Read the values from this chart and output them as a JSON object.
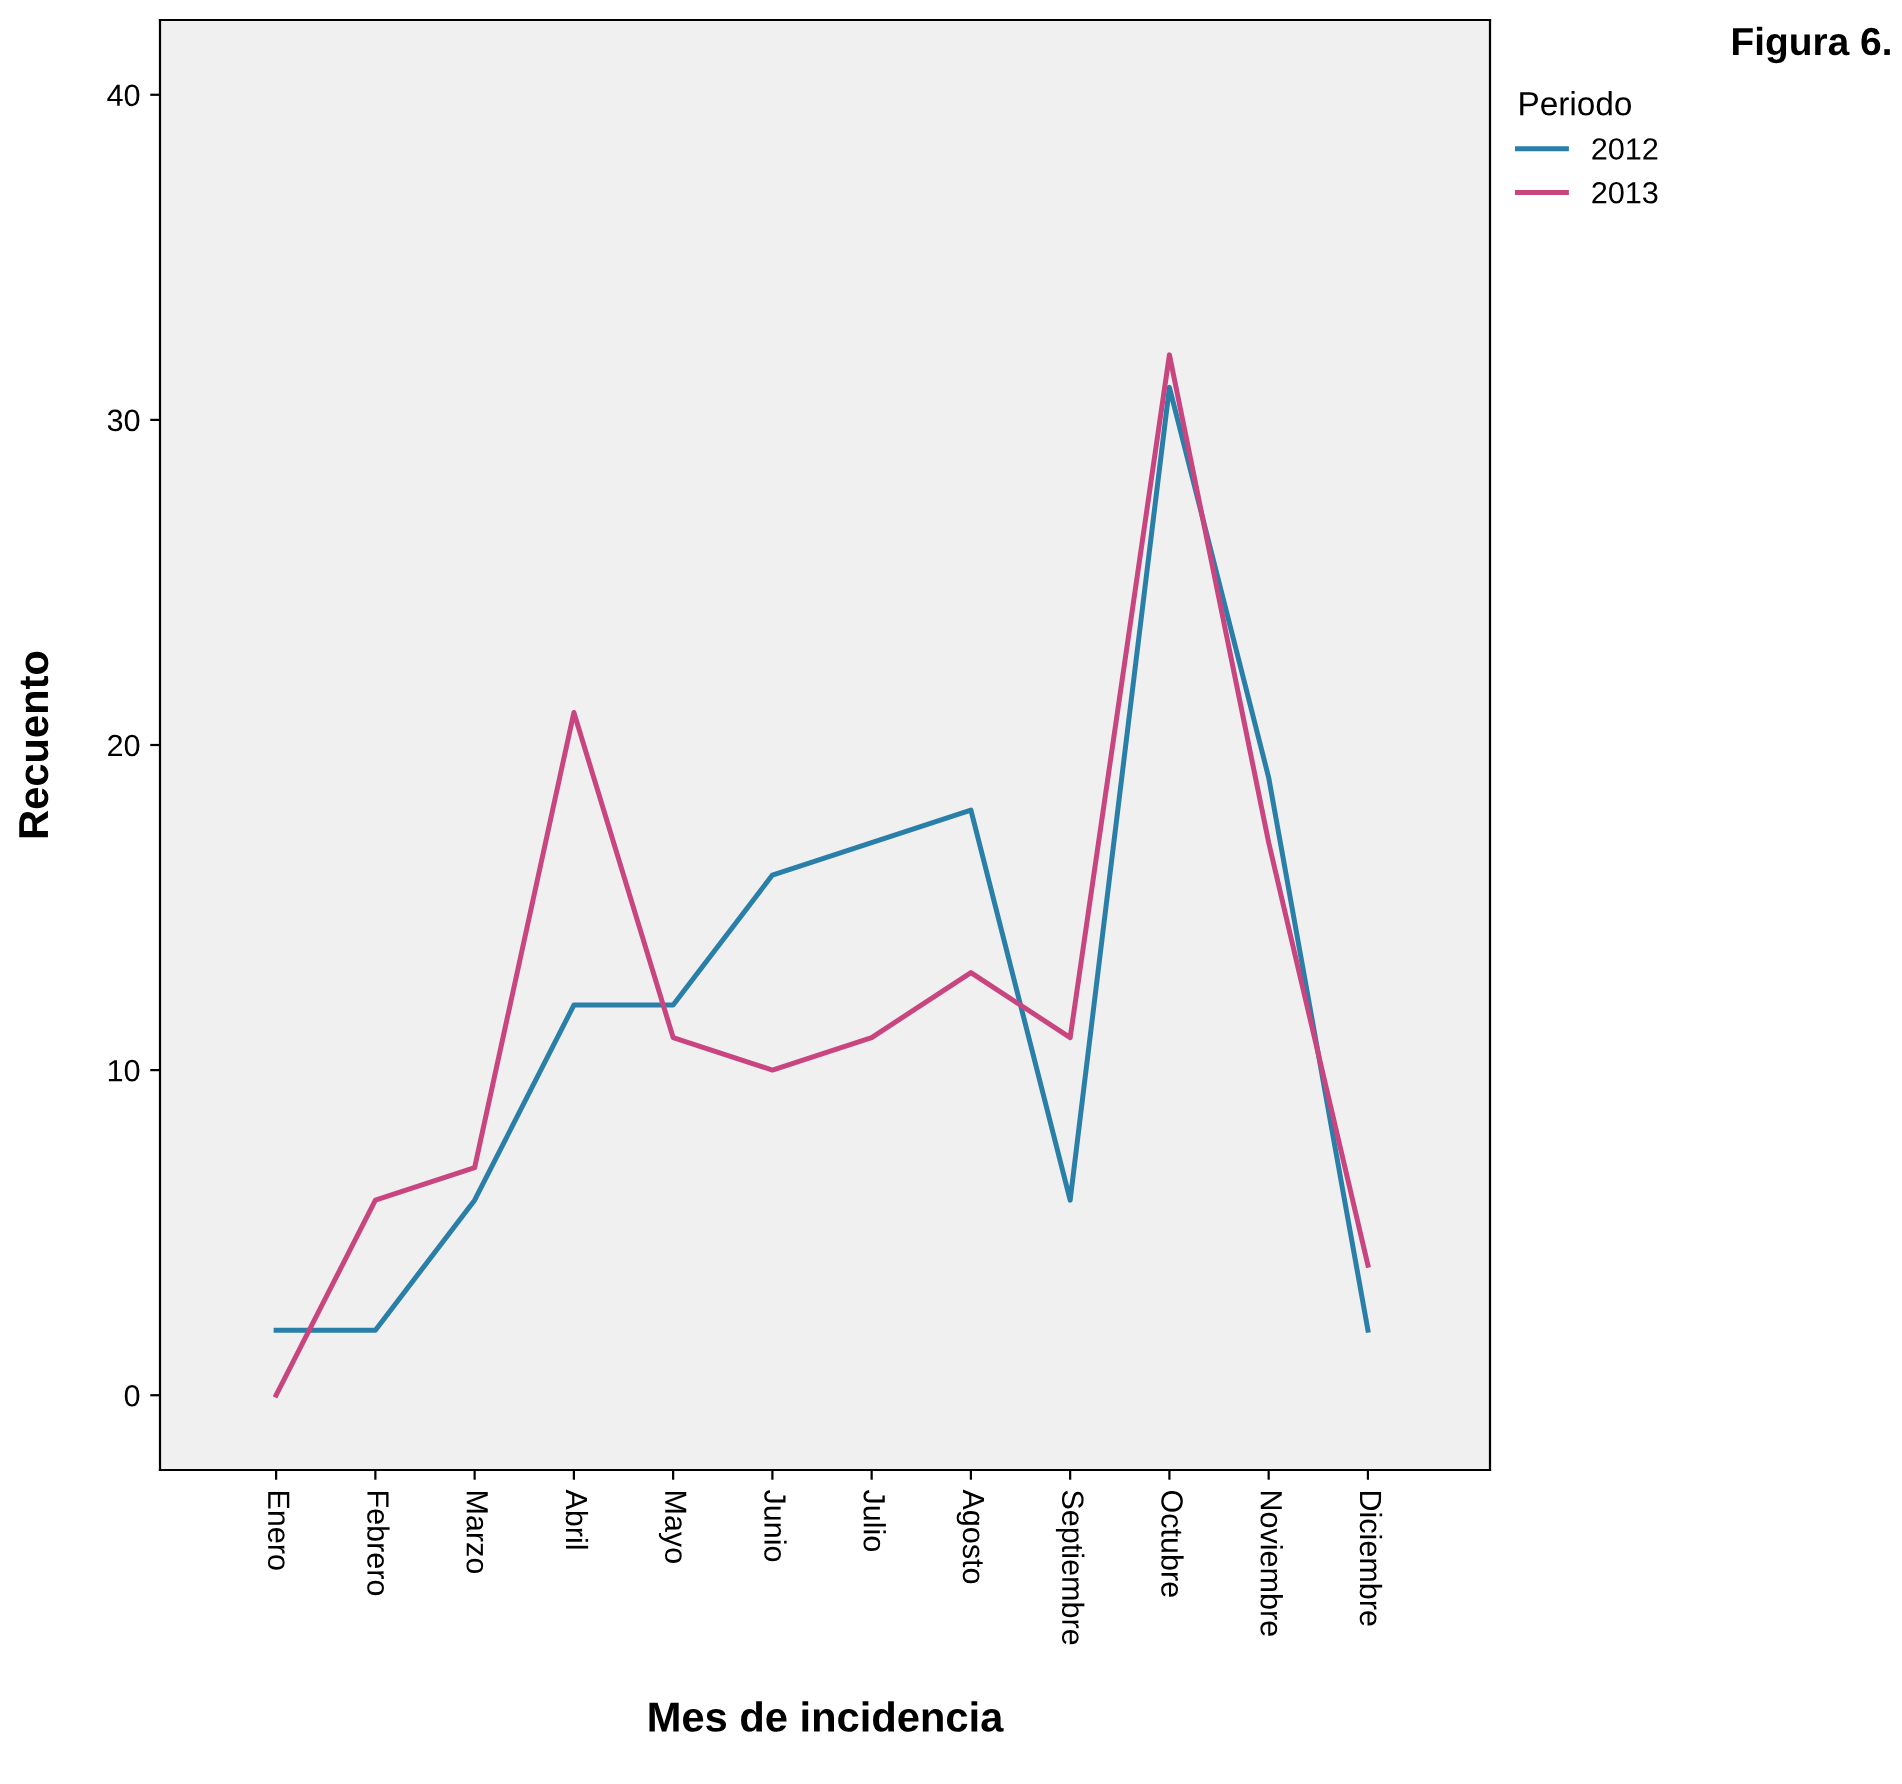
{
  "chart_data": {
    "type": "line",
    "ylabel": "Recuento",
    "xlabel": "Mes de incidencia",
    "legend_title": "Periodo",
    "legend": "top right",
    "grid": false,
    "annotations": [
      "Figura 6."
    ],
    "categories": [
      "Enero",
      "Febrero",
      "Marzo",
      "Abril",
      "Mayo",
      "Junio",
      "Julio",
      "Agosto",
      "Septiembre",
      "Octubre",
      "Noviembre",
      "Diciembre"
    ],
    "ylim": [
      -2.3,
      42.3
    ],
    "yticks": [
      0,
      10,
      20,
      30,
      40
    ],
    "series": [
      {
        "name": "2012",
        "color": "#2a7fa8",
        "values": [
          2,
          2,
          6,
          12,
          12,
          16,
          17,
          18,
          6,
          31,
          19,
          2
        ]
      },
      {
        "name": "2013",
        "color": "#c8457f",
        "values": [
          0,
          6,
          7,
          21,
          11,
          10,
          11,
          13,
          11,
          32,
          17,
          4
        ]
      }
    ]
  }
}
